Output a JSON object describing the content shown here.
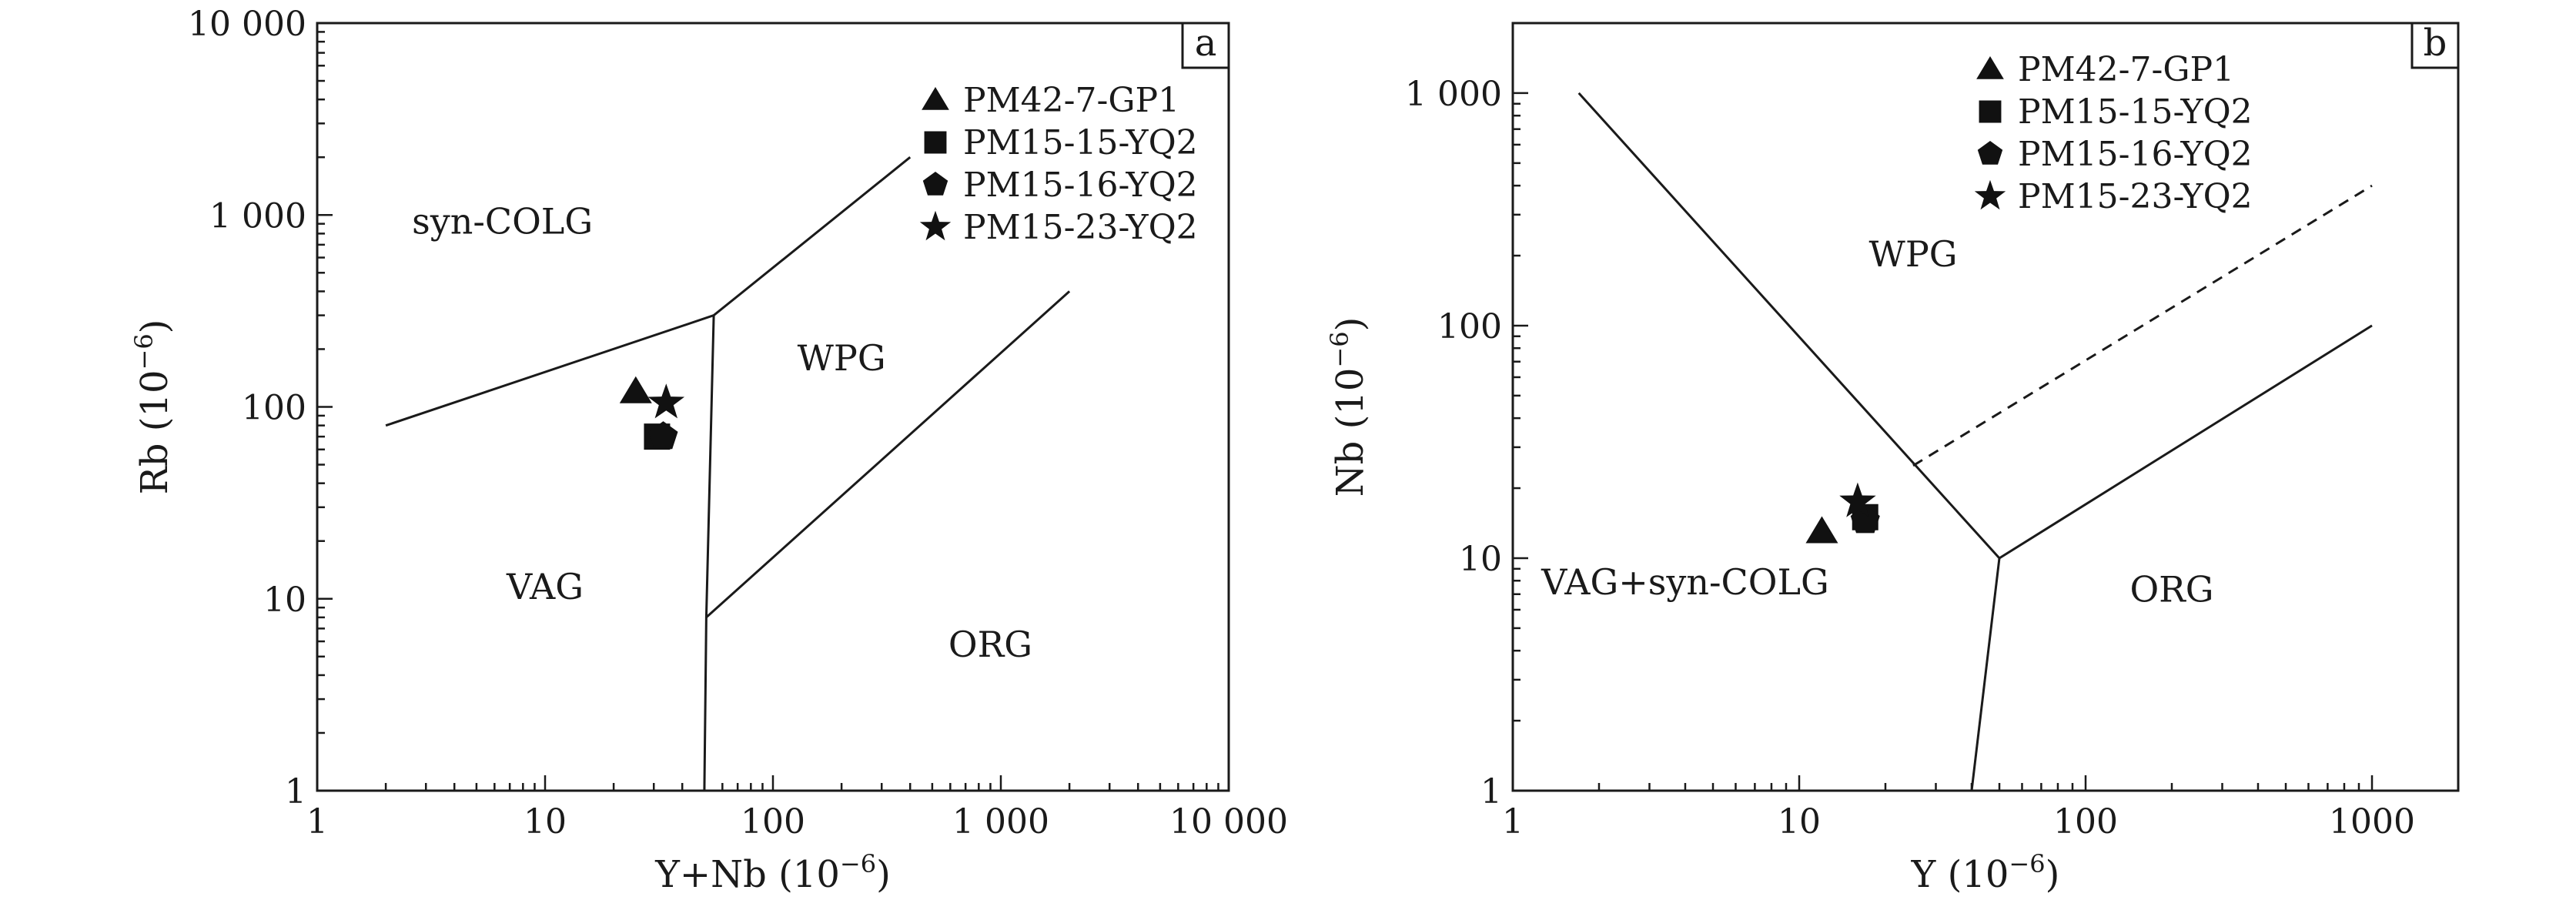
{
  "chart_data": [
    {
      "panel_label": "a",
      "type": "scatter",
      "xlabel": "Y+Nb (10",
      "xlabel_sup": "−6",
      "ylabel": "Rb (10",
      "ylabel_sup": "−6",
      "x_scale": "log",
      "y_scale": "log",
      "xlim": [
        1,
        10000
      ],
      "ylim": [
        1,
        10000
      ],
      "x_ticks": [
        {
          "value": 1,
          "label": "1"
        },
        {
          "value": 10,
          "label": "10"
        },
        {
          "value": 100,
          "label": "100"
        },
        {
          "value": 1000,
          "label": "1 000"
        },
        {
          "value": 10000,
          "label": "10 000"
        }
      ],
      "y_ticks": [
        {
          "value": 1,
          "label": "1"
        },
        {
          "value": 10,
          "label": "10"
        },
        {
          "value": 100,
          "label": "100"
        },
        {
          "value": 1000,
          "label": "1 000"
        },
        {
          "value": 10000,
          "label": "10 000"
        }
      ],
      "grid": false,
      "legend_position": "top-right",
      "boundaries": [
        {
          "style": "solid",
          "points": [
            [
              2,
              80
            ],
            [
              55,
              300
            ],
            [
              400,
              2000
            ]
          ]
        },
        {
          "style": "solid",
          "points": [
            [
              55,
              300
            ],
            [
              51,
              8
            ],
            [
              50,
              1
            ]
          ]
        },
        {
          "style": "solid",
          "points": [
            [
              51,
              8
            ],
            [
              2000,
              400
            ]
          ]
        }
      ],
      "region_labels": [
        {
          "text": "syn-COLG",
          "x": 6.5,
          "y": 800
        },
        {
          "text": "WPG",
          "x": 200,
          "y": 155
        },
        {
          "text": "VAG",
          "x": 10,
          "y": 10
        },
        {
          "text": "ORG",
          "x": 900,
          "y": 5
        }
      ],
      "series": [
        {
          "name": "PM42-7-GP1",
          "marker": "triangle",
          "points": [
            [
              25,
              120
            ]
          ]
        },
        {
          "name": "PM15-15-YQ2",
          "marker": "square",
          "points": [
            [
              31,
              70
            ]
          ]
        },
        {
          "name": "PM15-16-YQ2",
          "marker": "pentagon",
          "points": [
            [
              33,
              70
            ]
          ]
        },
        {
          "name": "PM15-23-YQ2",
          "marker": "star",
          "points": [
            [
              34,
              105
            ]
          ]
        }
      ]
    },
    {
      "panel_label": "b",
      "type": "scatter",
      "xlabel": "Y (10",
      "xlabel_sup": "−6",
      "ylabel": "Nb (10",
      "ylabel_sup": "−6",
      "x_scale": "log",
      "y_scale": "log",
      "xlim": [
        1,
        2000
      ],
      "ylim": [
        1,
        2000
      ],
      "x_ticks": [
        {
          "value": 1,
          "label": "1"
        },
        {
          "value": 10,
          "label": "10"
        },
        {
          "value": 100,
          "label": "100"
        },
        {
          "value": 1000,
          "label": "1000"
        }
      ],
      "y_ticks": [
        {
          "value": 1,
          "label": "1"
        },
        {
          "value": 10,
          "label": "10"
        },
        {
          "value": 100,
          "label": "100"
        },
        {
          "value": 1000,
          "label": "1 000"
        }
      ],
      "grid": false,
      "legend_position": "top-center",
      "boundaries": [
        {
          "style": "solid",
          "points": [
            [
              1.7,
              1000
            ],
            [
              50,
              10
            ]
          ]
        },
        {
          "style": "solid",
          "points": [
            [
              50,
              10
            ],
            [
              1000,
              100
            ]
          ]
        },
        {
          "style": "solid",
          "points": [
            [
              50,
              10
            ],
            [
              40,
              1
            ]
          ]
        },
        {
          "style": "dashed",
          "points": [
            [
              25,
              25
            ],
            [
              1000,
              400
            ]
          ]
        }
      ],
      "region_labels": [
        {
          "text": "WPG",
          "x": 25,
          "y": 180
        },
        {
          "text": "VAG+syn-COLG",
          "x": 4,
          "y": 7
        },
        {
          "text": "ORG",
          "x": 200,
          "y": 6.5
        }
      ],
      "series": [
        {
          "name": "PM42-7-GP1",
          "marker": "triangle",
          "points": [
            [
              12,
              13
            ]
          ]
        },
        {
          "name": "PM15-15-YQ2",
          "marker": "square",
          "points": [
            [
              17,
              15
            ]
          ]
        },
        {
          "name": "PM15-16-YQ2",
          "marker": "pentagon",
          "points": [
            [
              17,
              14.5
            ]
          ]
        },
        {
          "name": "PM15-23-YQ2",
          "marker": "star",
          "points": [
            [
              16,
              17.5
            ]
          ]
        }
      ]
    }
  ]
}
